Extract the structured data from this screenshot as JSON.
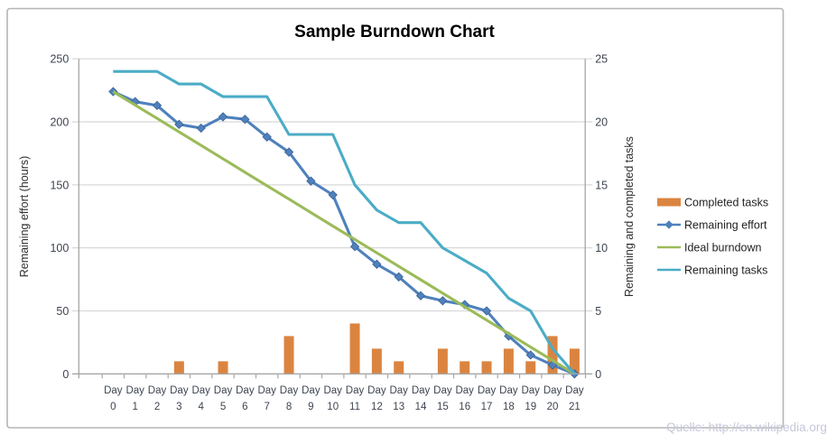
{
  "title": "Sample Burndown Chart",
  "watermark": "Quelle: http://en.wikipedia.org",
  "axes": {
    "left_label": "Remaining effort (hours)",
    "right_label": "Remaining and completed tasks",
    "left_ticks": [
      0,
      50,
      100,
      150,
      200,
      250
    ],
    "right_ticks": [
      0,
      5,
      10,
      15,
      20,
      25
    ],
    "x_prefix": "Day"
  },
  "legend": {
    "items": [
      {
        "label": "Completed tasks",
        "swatch": "bar",
        "color": "#db8440"
      },
      {
        "label": "Remaining effort",
        "swatch": "line-diamond",
        "color": "#4f81bd"
      },
      {
        "label": "Ideal burndown",
        "swatch": "line",
        "color": "#9bbb59"
      },
      {
        "label": "Remaining tasks",
        "swatch": "line",
        "color": "#4bacc6"
      }
    ]
  },
  "chart_data": {
    "type": "combo",
    "title": "Sample Burndown Chart",
    "categories": [
      "Day 0",
      "Day 1",
      "Day 2",
      "Day 3",
      "Day 4",
      "Day 5",
      "Day 6",
      "Day 7",
      "Day 8",
      "Day 9",
      "Day 10",
      "Day 11",
      "Day 12",
      "Day 13",
      "Day 14",
      "Day 15",
      "Day 16",
      "Day 17",
      "Day 18",
      "Day 19",
      "Day 20",
      "Day 21"
    ],
    "left_axis": {
      "label": "Remaining effort (hours)",
      "min": 0,
      "max": 250
    },
    "right_axis": {
      "label": "Remaining and completed tasks",
      "min": 0,
      "max": 25
    },
    "grid": "horizontal",
    "legend_position": "right",
    "series": [
      {
        "name": "Completed tasks",
        "type": "bar",
        "axis": "right",
        "color": "#db8440",
        "values": [
          0,
          0,
          0,
          1,
          0,
          1,
          0,
          0,
          3,
          0,
          0,
          4,
          2,
          1,
          0,
          2,
          1,
          1,
          2,
          1,
          3,
          2
        ]
      },
      {
        "name": "Remaining effort",
        "type": "line",
        "marker": "diamond",
        "axis": "left",
        "color": "#4f81bd",
        "values": [
          224,
          216,
          213,
          198,
          195,
          204,
          202,
          188,
          176,
          153,
          142,
          101,
          87,
          77,
          62,
          58,
          55,
          50,
          30,
          15,
          7,
          0
        ]
      },
      {
        "name": "Ideal burndown",
        "type": "line",
        "marker": "none",
        "axis": "left",
        "color": "#9bbb59",
        "values": [
          224,
          213.3,
          202.7,
          192,
          181.3,
          170.7,
          160,
          149.3,
          138.7,
          128,
          117.3,
          106.7,
          96,
          85.3,
          74.7,
          64,
          53.3,
          42.7,
          32,
          21.3,
          10.7,
          0
        ]
      },
      {
        "name": "Remaining tasks",
        "type": "line",
        "marker": "none",
        "axis": "right",
        "color": "#4bacc6",
        "values": [
          24,
          24,
          24,
          23,
          23,
          22,
          22,
          22,
          19,
          19,
          19,
          15,
          13,
          12,
          12,
          10,
          9,
          8,
          6,
          5,
          2,
          0
        ]
      }
    ]
  }
}
